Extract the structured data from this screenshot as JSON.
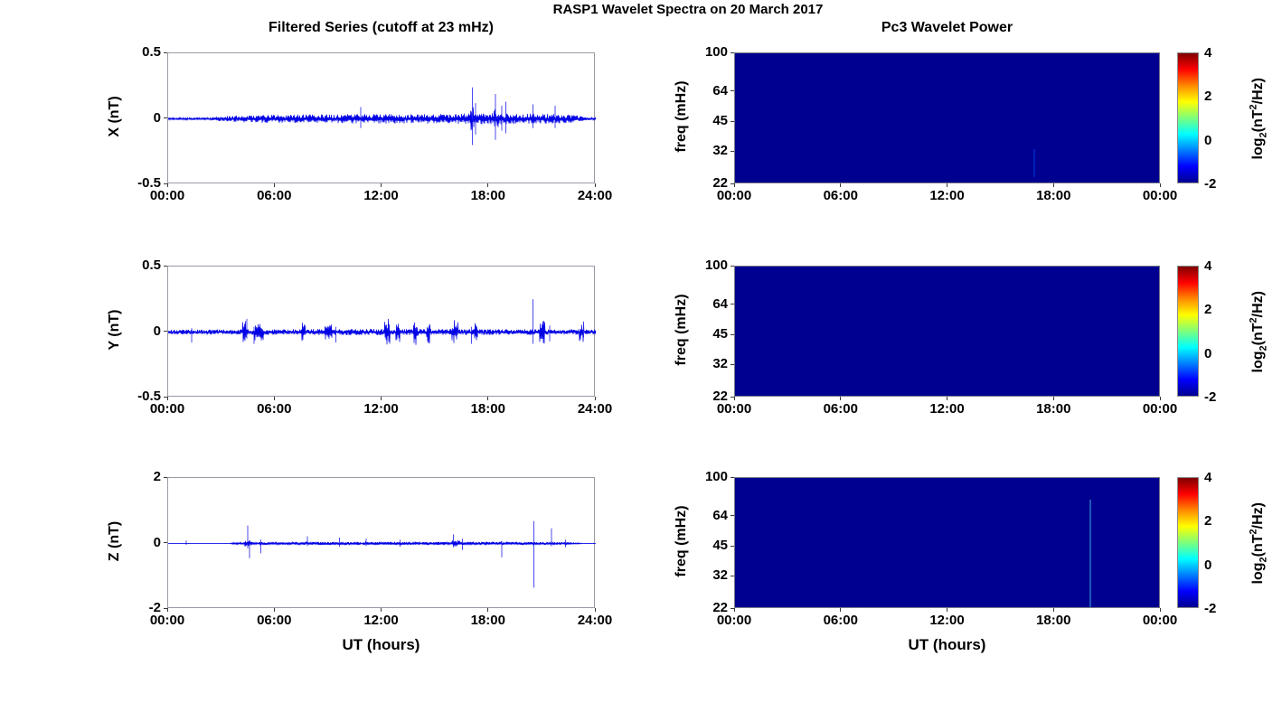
{
  "figure": {
    "suptitle": "RASP1 Wavelet Spectra on 20 March 2017",
    "left_title": "Filtered Series (cutoff at 23 mHz)",
    "right_title": "Pc3 Wavelet Power",
    "xlabel_left": "UT (hours)",
    "xlabel_right": "UT (hours)",
    "colors": {
      "series_blue": "#0000e6",
      "heatmap_bg": "#000090",
      "axis_border": "#9a9aa5",
      "colorbar_top": "#7f0000",
      "colorbar_bottom": "#000090"
    }
  },
  "chart_data": [
    {
      "type": "line",
      "component": "X",
      "ylabel": "X (nT)",
      "ylim": [
        -0.5,
        0.5
      ],
      "yticks": [
        0.5,
        0,
        -0.5
      ],
      "x_hours": [
        0,
        24
      ],
      "xticks": [
        "00:00",
        "06:00",
        "12:00",
        "18:00",
        "24:00"
      ],
      "seed": 11,
      "noise_envelope": [
        [
          0,
          0.008
        ],
        [
          2.3,
          0.009
        ],
        [
          3.2,
          0.022
        ],
        [
          5,
          0.03
        ],
        [
          8,
          0.034
        ],
        [
          11,
          0.038
        ],
        [
          14,
          0.036
        ],
        [
          16,
          0.04
        ],
        [
          18,
          0.042
        ],
        [
          20,
          0.04
        ],
        [
          21.5,
          0.038
        ],
        [
          22.8,
          0.03
        ],
        [
          23.5,
          0.012
        ],
        [
          24,
          0.008
        ]
      ],
      "bursts": [
        [
          17.1,
          0.05,
          0.3
        ],
        [
          18.4,
          0.035,
          0.25
        ]
      ],
      "spikes": [
        [
          10.8,
          0.09,
          -0.07
        ],
        [
          17.05,
          0.24,
          -0.2
        ],
        [
          17.25,
          0.12,
          -0.12
        ],
        [
          18.35,
          0.19,
          -0.16
        ],
        [
          18.7,
          0.1,
          -0.09
        ],
        [
          18.95,
          0.13,
          -0.11
        ],
        [
          20.45,
          0.11,
          -0.07
        ],
        [
          21.7,
          0.1,
          -0.07
        ]
      ]
    },
    {
      "type": "heatmap",
      "component": "X",
      "ylabel": "freq (mHz)",
      "freq_range_mhz": [
        22,
        100
      ],
      "yticks": [
        100,
        64,
        45,
        32,
        22
      ],
      "x_hours": [
        0,
        24
      ],
      "xticks": [
        "00:00",
        "06:00",
        "12:00",
        "18:00",
        "00:00"
      ],
      "background_value_log2": -2,
      "features": [
        {
          "t": 16.9,
          "f_low": 24,
          "f_high": 33,
          "value_est": -1.5,
          "color": "#0022c0",
          "opacity": 0.85
        }
      ],
      "colorbar": {
        "range": [
          -2,
          4
        ],
        "ticks": [
          4,
          2,
          0,
          -2
        ],
        "label_pre": "log",
        "label_sub": "2",
        "label_mid": "(nT",
        "label_sup": "2",
        "label_post": "/Hz)"
      }
    },
    {
      "type": "line",
      "component": "Y",
      "ylabel": "Y (nT)",
      "ylim": [
        -0.5,
        0.5
      ],
      "yticks": [
        0.5,
        0,
        -0.5
      ],
      "x_hours": [
        0,
        24
      ],
      "xticks": [
        "00:00",
        "06:00",
        "12:00",
        "18:00",
        "24:00"
      ],
      "seed": 23,
      "noise_envelope": [
        [
          0,
          0.018
        ],
        [
          3,
          0.02
        ],
        [
          6,
          0.022
        ],
        [
          12,
          0.024
        ],
        [
          18,
          0.022
        ],
        [
          24,
          0.02
        ]
      ],
      "bursts": [
        [
          4.3,
          0.07,
          0.25
        ],
        [
          5.1,
          0.05,
          0.5
        ],
        [
          7.6,
          0.07,
          0.2
        ],
        [
          9.0,
          0.04,
          0.4
        ],
        [
          12.3,
          0.08,
          0.3
        ],
        [
          12.9,
          0.06,
          0.25
        ],
        [
          13.9,
          0.08,
          0.25
        ],
        [
          14.6,
          0.07,
          0.2
        ],
        [
          16.1,
          0.07,
          0.35
        ],
        [
          17.3,
          0.05,
          0.2
        ],
        [
          21.0,
          0.07,
          0.3
        ],
        [
          23.2,
          0.06,
          0.25
        ]
      ],
      "spikes": [
        [
          1.3,
          0.03,
          -0.08
        ],
        [
          4.4,
          0.1,
          -0.05
        ],
        [
          4.8,
          0.04,
          -0.09
        ],
        [
          9.4,
          0.04,
          -0.08
        ],
        [
          17.0,
          0.04,
          -0.09
        ],
        [
          20.45,
          0.25,
          -0.09
        ],
        [
          21.4,
          0.05,
          -0.07
        ],
        [
          23.3,
          0.08,
          -0.04
        ]
      ]
    },
    {
      "type": "heatmap",
      "component": "Y",
      "ylabel": "freq (mHz)",
      "freq_range_mhz": [
        22,
        100
      ],
      "yticks": [
        100,
        64,
        45,
        32,
        22
      ],
      "x_hours": [
        0,
        24
      ],
      "xticks": [
        "00:00",
        "06:00",
        "12:00",
        "18:00",
        "00:00"
      ],
      "background_value_log2": -2,
      "features": [],
      "colorbar": {
        "range": [
          -2,
          4
        ],
        "ticks": [
          4,
          2,
          0,
          -2
        ],
        "label_pre": "log",
        "label_sub": "2",
        "label_mid": "(nT",
        "label_sup": "2",
        "label_post": "/Hz)"
      }
    },
    {
      "type": "line",
      "component": "Z",
      "ylabel": "Z (nT)",
      "ylim": [
        -2,
        2
      ],
      "yticks": [
        2,
        0,
        -2
      ],
      "x_hours": [
        0,
        24
      ],
      "xticks": [
        "00:00",
        "06:00",
        "12:00",
        "18:00",
        "24:00"
      ],
      "seed": 37,
      "noise_envelope": [
        [
          0,
          0.004
        ],
        [
          3.4,
          0.004
        ],
        [
          3.7,
          0.03
        ],
        [
          4.5,
          0.04
        ],
        [
          6,
          0.045
        ],
        [
          9,
          0.05
        ],
        [
          12,
          0.05
        ],
        [
          15,
          0.05
        ],
        [
          17,
          0.055
        ],
        [
          19,
          0.05
        ],
        [
          21,
          0.045
        ],
        [
          22.5,
          0.04
        ],
        [
          23.2,
          0.01
        ],
        [
          24,
          0.006
        ]
      ],
      "bursts": [
        [
          4.5,
          0.06,
          0.4
        ],
        [
          16.2,
          0.05,
          0.5
        ]
      ],
      "spikes": [
        [
          1.0,
          0.09,
          -0.04
        ],
        [
          4.45,
          0.55,
          -0.15
        ],
        [
          4.55,
          0.1,
          -0.45
        ],
        [
          5.2,
          0.12,
          -0.3
        ],
        [
          7.8,
          0.22,
          -0.08
        ],
        [
          9.6,
          0.18,
          -0.1
        ],
        [
          11.1,
          0.15,
          -0.08
        ],
        [
          13.0,
          0.12,
          -0.1
        ],
        [
          16.0,
          0.28,
          -0.12
        ],
        [
          16.5,
          0.15,
          -0.2
        ],
        [
          18.7,
          0.08,
          -0.42
        ],
        [
          20.5,
          0.68,
          -1.35
        ],
        [
          21.5,
          0.46,
          -0.08
        ],
        [
          22.3,
          0.12,
          -0.12
        ]
      ]
    },
    {
      "type": "heatmap",
      "component": "Z",
      "ylabel": "freq (mHz)",
      "freq_range_mhz": [
        22,
        100
      ],
      "yticks": [
        100,
        64,
        45,
        32,
        22
      ],
      "x_hours": [
        0,
        24
      ],
      "xticks": [
        "00:00",
        "06:00",
        "12:00",
        "18:00",
        "00:00"
      ],
      "background_value_log2": -2,
      "features": [
        {
          "t": 20.05,
          "f_low": 22,
          "f_high": 78,
          "value_est": -1.0,
          "color": "#2b6abf",
          "opacity": 0.8
        }
      ],
      "colorbar": {
        "range": [
          -2,
          4
        ],
        "ticks": [
          4,
          2,
          0,
          -2
        ],
        "label_pre": "log",
        "label_sub": "2",
        "label_mid": "(nT",
        "label_sup": "2",
        "label_post": "/Hz)"
      }
    }
  ]
}
